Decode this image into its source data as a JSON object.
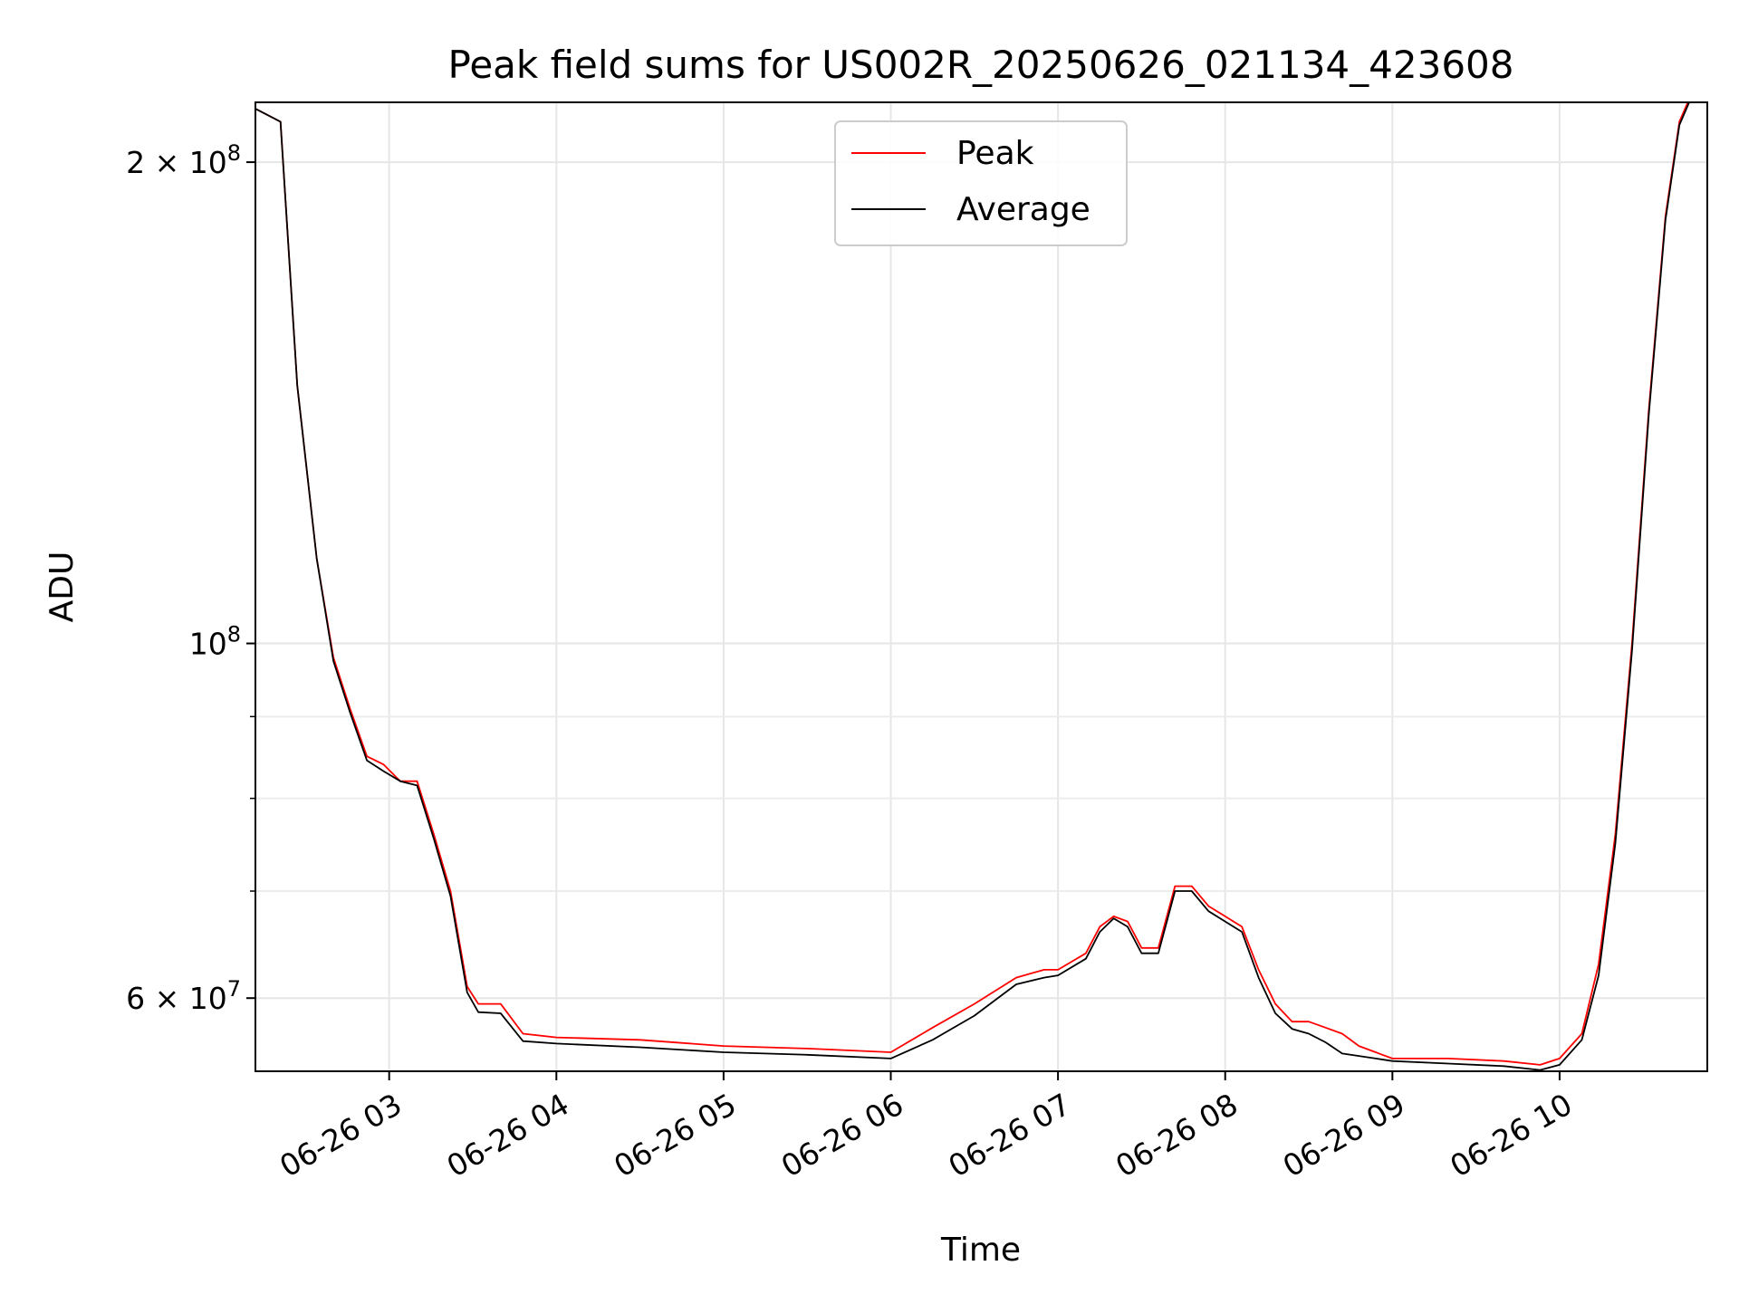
{
  "chart_data": {
    "type": "line",
    "title": "Peak field sums for US002R_20250626_021134_423608",
    "xlabel": "Time",
    "ylabel": "ADU",
    "yscale": "log",
    "xlim": [
      "2025-06-26 02:12",
      "2025-06-26 10:53"
    ],
    "ylim": [
      54000000,
      218000000
    ],
    "grid": true,
    "legend_position": "upper center",
    "x_ticks": [
      "06-26 03",
      "06-26 04",
      "06-26 05",
      "06-26 06",
      "06-26 07",
      "06-26 08",
      "06-26 09",
      "06-26 10"
    ],
    "y_major_ticks": [
      {
        "value": 60000000,
        "base": "6 × 10",
        "exp": "7"
      },
      {
        "value": 100000000,
        "base": "10",
        "exp": "8"
      },
      {
        "value": 200000000,
        "base": "2 × 10",
        "exp": "8"
      }
    ],
    "y_minor_ticks": [
      70000000,
      80000000,
      90000000
    ],
    "series": [
      {
        "name": "Peak",
        "color": "#ff0000",
        "x": [
          "2025-06-26 02:12",
          "2025-06-26 02:21",
          "2025-06-26 02:27",
          "2025-06-26 02:34",
          "2025-06-26 02:40",
          "2025-06-26 02:46",
          "2025-06-26 02:52",
          "2025-06-26 02:58",
          "2025-06-26 03:04",
          "2025-06-26 03:10",
          "2025-06-26 03:16",
          "2025-06-26 03:22",
          "2025-06-26 03:28",
          "2025-06-26 03:32",
          "2025-06-26 03:40",
          "2025-06-26 03:48",
          "2025-06-26 04:00",
          "2025-06-26 04:30",
          "2025-06-26 05:00",
          "2025-06-26 05:30",
          "2025-06-26 06:00",
          "2025-06-26 06:15",
          "2025-06-26 06:30",
          "2025-06-26 06:45",
          "2025-06-26 06:55",
          "2025-06-26 07:00",
          "2025-06-26 07:10",
          "2025-06-26 07:15",
          "2025-06-26 07:20",
          "2025-06-26 07:25",
          "2025-06-26 07:30",
          "2025-06-26 07:36",
          "2025-06-26 07:42",
          "2025-06-26 07:48",
          "2025-06-26 07:54",
          "2025-06-26 08:00",
          "2025-06-26 08:06",
          "2025-06-26 08:12",
          "2025-06-26 08:18",
          "2025-06-26 08:24",
          "2025-06-26 08:30",
          "2025-06-26 08:36",
          "2025-06-26 08:42",
          "2025-06-26 08:48",
          "2025-06-26 08:54",
          "2025-06-26 09:00",
          "2025-06-26 09:20",
          "2025-06-26 09:40",
          "2025-06-26 09:53",
          "2025-06-26 10:00",
          "2025-06-26 10:08",
          "2025-06-26 10:14",
          "2025-06-26 10:20",
          "2025-06-26 10:26",
          "2025-06-26 10:32",
          "2025-06-26 10:38",
          "2025-06-26 10:43",
          "2025-06-26 10:47"
        ],
        "y": [
          216000000,
          212000000,
          145000000,
          113000000,
          98000000,
          91000000,
          85000000,
          84000000,
          82000000,
          82000000,
          76000000,
          70000000,
          61000000,
          59500000,
          59500000,
          57000000,
          56700000,
          56500000,
          56000000,
          55800000,
          55500000,
          57500000,
          59500000,
          61800000,
          62500000,
          62500000,
          64000000,
          66500000,
          67500000,
          67000000,
          64500000,
          64500000,
          70500000,
          70500000,
          68500000,
          67500000,
          66500000,
          62500000,
          59500000,
          58000000,
          58000000,
          57500000,
          57000000,
          56000000,
          55500000,
          55000000,
          55000000,
          54800000,
          54500000,
          55000000,
          57000000,
          63000000,
          76000000,
          100000000,
          140000000,
          185000000,
          212000000,
          220000000
        ]
      },
      {
        "name": "Average",
        "color": "#000000",
        "x": [
          "2025-06-26 02:12",
          "2025-06-26 02:21",
          "2025-06-26 02:27",
          "2025-06-26 02:34",
          "2025-06-26 02:40",
          "2025-06-26 02:46",
          "2025-06-26 02:52",
          "2025-06-26 02:58",
          "2025-06-26 03:04",
          "2025-06-26 03:10",
          "2025-06-26 03:16",
          "2025-06-26 03:22",
          "2025-06-26 03:28",
          "2025-06-26 03:32",
          "2025-06-26 03:40",
          "2025-06-26 03:48",
          "2025-06-26 04:00",
          "2025-06-26 04:30",
          "2025-06-26 05:00",
          "2025-06-26 05:30",
          "2025-06-26 06:00",
          "2025-06-26 06:15",
          "2025-06-26 06:30",
          "2025-06-26 06:45",
          "2025-06-26 06:55",
          "2025-06-26 07:00",
          "2025-06-26 07:10",
          "2025-06-26 07:15",
          "2025-06-26 07:20",
          "2025-06-26 07:25",
          "2025-06-26 07:30",
          "2025-06-26 07:36",
          "2025-06-26 07:42",
          "2025-06-26 07:48",
          "2025-06-26 07:54",
          "2025-06-26 08:00",
          "2025-06-26 08:06",
          "2025-06-26 08:12",
          "2025-06-26 08:18",
          "2025-06-26 08:24",
          "2025-06-26 08:30",
          "2025-06-26 08:36",
          "2025-06-26 08:42",
          "2025-06-26 08:48",
          "2025-06-26 08:54",
          "2025-06-26 09:00",
          "2025-06-26 09:20",
          "2025-06-26 09:40",
          "2025-06-26 09:53",
          "2025-06-26 10:00",
          "2025-06-26 10:08",
          "2025-06-26 10:14",
          "2025-06-26 10:20",
          "2025-06-26 10:26",
          "2025-06-26 10:32",
          "2025-06-26 10:38",
          "2025-06-26 10:43",
          "2025-06-26 10:47"
        ],
        "y": [
          216000000,
          212000000,
          145000000,
          113000000,
          97500000,
          90500000,
          84500000,
          83200000,
          82000000,
          81500000,
          75500000,
          69500000,
          60500000,
          58800000,
          58700000,
          56400000,
          56200000,
          55900000,
          55500000,
          55300000,
          55000000,
          56500000,
          58500000,
          61200000,
          61800000,
          62000000,
          63500000,
          66000000,
          67300000,
          66500000,
          64000000,
          64000000,
          70000000,
          70000000,
          68000000,
          67000000,
          66000000,
          61800000,
          58700000,
          57400000,
          57000000,
          56300000,
          55400000,
          55200000,
          55000000,
          54800000,
          54600000,
          54400000,
          54100000,
          54500000,
          56500000,
          62000000,
          75000000,
          99000000,
          139000000,
          184000000,
          211000000,
          219000000
        ]
      }
    ]
  }
}
